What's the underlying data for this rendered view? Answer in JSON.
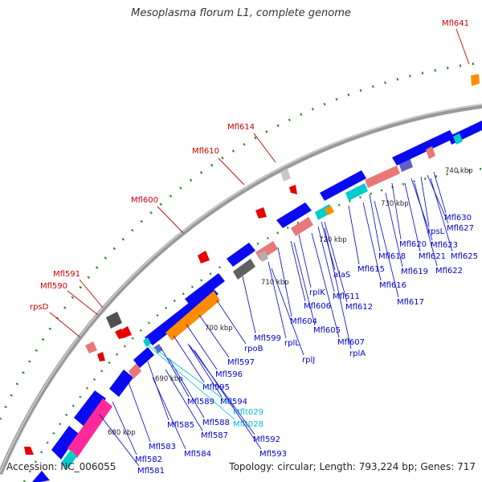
{
  "header": {
    "title": "Mesoplasma florum L1, complete genome"
  },
  "footer": {
    "accession": "Accession: NC_006055",
    "summary": "Topology: circular; Length: 793,224 bp; Genes: 717"
  },
  "colors": {
    "cds": "#0a0af0",
    "rRNA": "#ff8c00",
    "tRNA": "#00cccc",
    "pink": "#e87878",
    "magenta": "#ff2a9a",
    "purple": "#6060c8",
    "gray": "#808080",
    "red_label": "#cc0000",
    "blue_label": "#0000cc",
    "cyan_label": "#00bcd4",
    "backbone": "#8c8c8c",
    "dots": "#228b22"
  },
  "ticks": [
    {
      "label": "680 kbp"
    },
    {
      "label": "690 kbp"
    },
    {
      "label": "700 kbp"
    },
    {
      "label": "710 kbp"
    },
    {
      "label": "720 kbp"
    },
    {
      "label": "730 kbp"
    },
    {
      "label": "740 kbp"
    }
  ],
  "outer_labels": [
    {
      "text": "Mfl641"
    },
    {
      "text": "Mfl614"
    },
    {
      "text": "Mfl610"
    },
    {
      "text": "Mfl600"
    },
    {
      "text": "Mfl591"
    },
    {
      "text": "Mfl590"
    },
    {
      "text": "rpsD"
    }
  ],
  "inner_labels": [
    {
      "text": "Mfl630",
      "color": "blue"
    },
    {
      "text": "rpsL",
      "color": "blue"
    },
    {
      "text": "Mfl627",
      "color": "blue"
    },
    {
      "text": "Mfl623",
      "color": "blue"
    },
    {
      "text": "Mfl625",
      "color": "blue"
    },
    {
      "text": "Mfl620",
      "color": "blue"
    },
    {
      "text": "Mfl621",
      "color": "blue"
    },
    {
      "text": "Mfl618",
      "color": "blue"
    },
    {
      "text": "Mfl619",
      "color": "blue"
    },
    {
      "text": "Mfl622",
      "color": "blue"
    },
    {
      "text": "Mfl615",
      "color": "blue"
    },
    {
      "text": "Mfl616",
      "color": "blue"
    },
    {
      "text": "alaS",
      "color": "blue"
    },
    {
      "text": "Mfl617",
      "color": "blue"
    },
    {
      "text": "rplK",
      "color": "blue"
    },
    {
      "text": "Mfl611",
      "color": "blue"
    },
    {
      "text": "Mfl606",
      "color": "blue"
    },
    {
      "text": "Mfl612",
      "color": "blue"
    },
    {
      "text": "Mfl604",
      "color": "blue"
    },
    {
      "text": "Mfl605",
      "color": "blue"
    },
    {
      "text": "Mfl599",
      "color": "blue"
    },
    {
      "text": "rplL",
      "color": "blue"
    },
    {
      "text": "Mfl607",
      "color": "blue"
    },
    {
      "text": "rplA",
      "color": "blue"
    },
    {
      "text": "rpoB",
      "color": "blue"
    },
    {
      "text": "rplJ",
      "color": "blue"
    },
    {
      "text": "Mfl597",
      "color": "blue"
    },
    {
      "text": "Mfl596",
      "color": "blue"
    },
    {
      "text": "Mfl595",
      "color": "blue"
    },
    {
      "text": "Mfl589",
      "color": "blue"
    },
    {
      "text": "Mfl594",
      "color": "blue"
    },
    {
      "text": "Mflt029",
      "color": "cyan"
    },
    {
      "text": "Mfl585",
      "color": "blue"
    },
    {
      "text": "Mfl588",
      "color": "blue"
    },
    {
      "text": "Mflt028",
      "color": "cyan"
    },
    {
      "text": "Mfl587",
      "color": "blue"
    },
    {
      "text": "Mfl592",
      "color": "blue"
    },
    {
      "text": "Mfl583",
      "color": "blue"
    },
    {
      "text": "Mfl584",
      "color": "blue"
    },
    {
      "text": "Mfl593",
      "color": "blue"
    },
    {
      "text": "Mfl582",
      "color": "blue"
    },
    {
      "text": "Mfl581",
      "color": "blue"
    }
  ]
}
